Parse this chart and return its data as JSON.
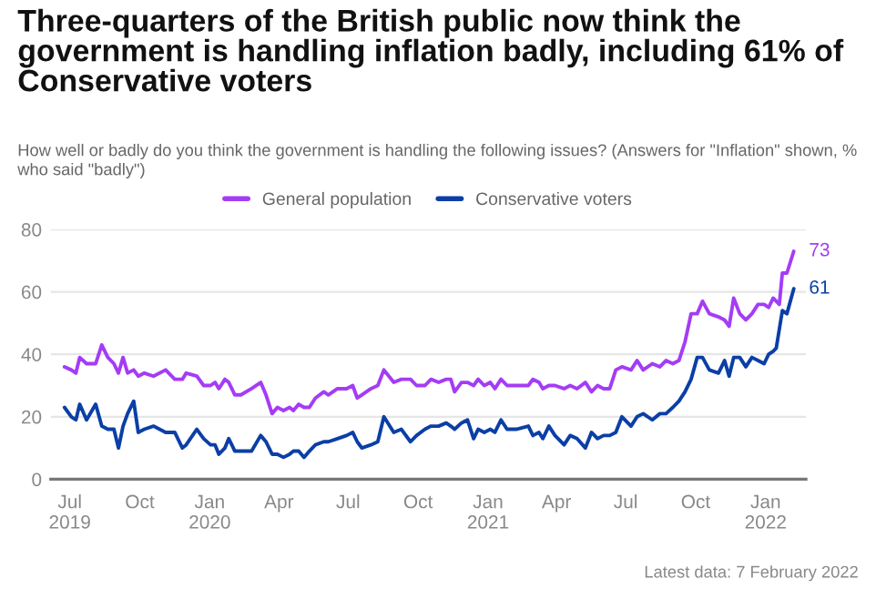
{
  "chart_data": {
    "type": "line",
    "title": "Three-quarters of the British public now think the government is handling inflation badly, including 61% of Conservative voters",
    "subtitle": "How well or badly do you think the government is handling the following issues? (Answers for \"Inflation\" shown, % who said \"badly\")",
    "series": [
      {
        "name": "General population",
        "color": "#a43cf5",
        "x": [
          "2019-06-24",
          "2019-07-03",
          "2019-07-09",
          "2019-07-14",
          "2019-07-23",
          "2019-08-04",
          "2019-08-12",
          "2019-08-20",
          "2019-08-28",
          "2019-09-03",
          "2019-09-09",
          "2019-09-15",
          "2019-09-23",
          "2019-09-29",
          "2019-10-07",
          "2019-10-19",
          "2019-11-04",
          "2019-11-16",
          "2019-11-26",
          "2019-12-01",
          "2019-12-15",
          "2019-12-24",
          "2020-01-02",
          "2020-01-08",
          "2020-01-13",
          "2020-01-21",
          "2020-01-26",
          "2020-02-03",
          "2020-02-11",
          "2020-02-25",
          "2020-03-08",
          "2020-03-15",
          "2020-03-23",
          "2020-03-30",
          "2020-04-07",
          "2020-04-15",
          "2020-04-20",
          "2020-04-27",
          "2020-05-04",
          "2020-05-11",
          "2020-05-19",
          "2020-05-30",
          "2020-06-05",
          "2020-06-17",
          "2020-06-29",
          "2020-07-07",
          "2020-07-13",
          "2020-07-19",
          "2020-07-31",
          "2020-08-09",
          "2020-08-17",
          "2020-08-30",
          "2020-09-09",
          "2020-09-21",
          "2020-09-29",
          "2020-10-10",
          "2020-10-18",
          "2020-10-28",
          "2020-11-07",
          "2020-11-13",
          "2020-11-18",
          "2020-11-27",
          "2020-12-05",
          "2020-12-13",
          "2020-12-19",
          "2020-12-27",
          "2021-01-04",
          "2021-01-10",
          "2021-01-18",
          "2021-01-26",
          "2021-02-07",
          "2021-02-23",
          "2021-03-01",
          "2021-03-09",
          "2021-03-14",
          "2021-03-22",
          "2021-03-30",
          "2021-04-11",
          "2021-04-19",
          "2021-04-28",
          "2021-05-09",
          "2021-05-17",
          "2021-05-25",
          "2021-06-02",
          "2021-06-10",
          "2021-06-18",
          "2021-06-26",
          "2021-07-08",
          "2021-07-16",
          "2021-07-24",
          "2021-08-05",
          "2021-08-15",
          "2021-08-23",
          "2021-09-01",
          "2021-09-09",
          "2021-09-17",
          "2021-09-25",
          "2021-10-03",
          "2021-10-10",
          "2021-10-19",
          "2021-10-31",
          "2021-11-08",
          "2021-11-14",
          "2021-11-20",
          "2021-11-28",
          "2021-12-06",
          "2021-12-14",
          "2021-12-22",
          "2021-12-30",
          "2022-01-05",
          "2022-01-11",
          "2022-01-15",
          "2022-01-19",
          "2022-01-23",
          "2022-01-29",
          "2022-02-07"
        ],
        "values": [
          36,
          35,
          34,
          39,
          37,
          37,
          43,
          39,
          37,
          34,
          39,
          34,
          35,
          33,
          34,
          33,
          35,
          32,
          32,
          34,
          33,
          30,
          30,
          31,
          29,
          32,
          31,
          27,
          27,
          29,
          31,
          27,
          21,
          23,
          22,
          23,
          22,
          24,
          23,
          23,
          26,
          28,
          27,
          29,
          29,
          30,
          26,
          27,
          29,
          30,
          35,
          31,
          32,
          32,
          30,
          30,
          32,
          31,
          32,
          32,
          28,
          31,
          31,
          30,
          32,
          30,
          31,
          29,
          32,
          30,
          30,
          30,
          32,
          31,
          29,
          30,
          30,
          29,
          30,
          29,
          31,
          28,
          30,
          29,
          29,
          35,
          36,
          35,
          38,
          35,
          37,
          36,
          38,
          37,
          38,
          44,
          53,
          53,
          57,
          53,
          52,
          51,
          49,
          58,
          53,
          51,
          53,
          56,
          56,
          55,
          58,
          57,
          56,
          66,
          66,
          73
        ]
      },
      {
        "name": "Conservative voters",
        "color": "#0b3fa6",
        "x": [
          "2019-06-24",
          "2019-07-03",
          "2019-07-09",
          "2019-07-14",
          "2019-07-23",
          "2019-08-04",
          "2019-08-12",
          "2019-08-20",
          "2019-08-28",
          "2019-09-03",
          "2019-09-09",
          "2019-09-15",
          "2019-09-23",
          "2019-09-29",
          "2019-10-07",
          "2019-10-19",
          "2019-11-04",
          "2019-11-16",
          "2019-11-26",
          "2019-12-01",
          "2019-12-15",
          "2019-12-24",
          "2020-01-02",
          "2020-01-08",
          "2020-01-13",
          "2020-01-21",
          "2020-01-26",
          "2020-02-03",
          "2020-02-11",
          "2020-02-25",
          "2020-03-08",
          "2020-03-15",
          "2020-03-23",
          "2020-03-30",
          "2020-04-07",
          "2020-04-15",
          "2020-04-20",
          "2020-04-27",
          "2020-05-04",
          "2020-05-11",
          "2020-05-19",
          "2020-05-30",
          "2020-06-05",
          "2020-06-17",
          "2020-06-29",
          "2020-07-07",
          "2020-07-13",
          "2020-07-19",
          "2020-07-31",
          "2020-08-09",
          "2020-08-17",
          "2020-08-30",
          "2020-09-09",
          "2020-09-21",
          "2020-09-29",
          "2020-10-10",
          "2020-10-18",
          "2020-10-28",
          "2020-11-07",
          "2020-11-13",
          "2020-11-18",
          "2020-11-27",
          "2020-12-05",
          "2020-12-13",
          "2020-12-19",
          "2020-12-27",
          "2021-01-04",
          "2021-01-10",
          "2021-01-18",
          "2021-01-26",
          "2021-02-07",
          "2021-02-23",
          "2021-03-01",
          "2021-03-09",
          "2021-03-14",
          "2021-03-22",
          "2021-03-30",
          "2021-04-11",
          "2021-04-19",
          "2021-04-28",
          "2021-05-09",
          "2021-05-17",
          "2021-05-25",
          "2021-06-02",
          "2021-06-10",
          "2021-06-18",
          "2021-06-26",
          "2021-07-08",
          "2021-07-16",
          "2021-07-24",
          "2021-08-05",
          "2021-08-15",
          "2021-08-23",
          "2021-09-01",
          "2021-09-09",
          "2021-09-17",
          "2021-09-25",
          "2021-10-03",
          "2021-10-10",
          "2021-10-19",
          "2021-10-31",
          "2021-11-08",
          "2021-11-14",
          "2021-11-20",
          "2021-11-28",
          "2021-12-06",
          "2021-12-14",
          "2021-12-22",
          "2021-12-30",
          "2022-01-05",
          "2022-01-11",
          "2022-01-15",
          "2022-01-19",
          "2022-01-23",
          "2022-01-29",
          "2022-02-07"
        ],
        "values": [
          23,
          20,
          19,
          24,
          19,
          24,
          17,
          16,
          16,
          10,
          17,
          21,
          25,
          15,
          16,
          17,
          15,
          15,
          10,
          11,
          16,
          13,
          11,
          11,
          8,
          10,
          13,
          9,
          9,
          9,
          14,
          12,
          8,
          8,
          7,
          8,
          9,
          9,
          7,
          9,
          11,
          12,
          12,
          13,
          14,
          15,
          12,
          10,
          11,
          12,
          20,
          15,
          16,
          12,
          14,
          16,
          17,
          17,
          18,
          17,
          16,
          18,
          19,
          13,
          16,
          15,
          16,
          15,
          19,
          16,
          16,
          17,
          14,
          15,
          13,
          17,
          14,
          11,
          14,
          13,
          10,
          15,
          13,
          14,
          14,
          15,
          20,
          17,
          20,
          21,
          19,
          21,
          21,
          23,
          25,
          28,
          32,
          39,
          39,
          35,
          34,
          38,
          33,
          39,
          39,
          36,
          39,
          38,
          37,
          40,
          41,
          42,
          48,
          54,
          53,
          61
        ]
      }
    ],
    "xlim": [
      "2019-06-06",
      "2022-02-23"
    ],
    "xticks": [
      {
        "value": "2019-07-01",
        "label": "Jul\n2019"
      },
      {
        "value": "2019-10-01",
        "label": "Oct"
      },
      {
        "value": "2020-01-01",
        "label": "Jan\n2020"
      },
      {
        "value": "2020-04-01",
        "label": "Apr"
      },
      {
        "value": "2020-07-01",
        "label": "Jul"
      },
      {
        "value": "2020-10-01",
        "label": "Oct"
      },
      {
        "value": "2021-01-01",
        "label": "Jan\n2021"
      },
      {
        "value": "2021-04-01",
        "label": "Apr"
      },
      {
        "value": "2021-07-01",
        "label": "Jul"
      },
      {
        "value": "2021-10-01",
        "label": "Oct"
      },
      {
        "value": "2022-01-01",
        "label": "Jan\n2022"
      }
    ],
    "ylim": [
      0,
      80
    ],
    "yticks": [
      0,
      20,
      40,
      60,
      80
    ],
    "grid": "y",
    "legend": "top",
    "annotations": [
      {
        "text": "73",
        "x": "2022-02-07",
        "y": 73
      },
      {
        "text": "61",
        "x": "2022-02-07",
        "y": 61
      },
      "Latest data: 7 February 2022"
    ]
  }
}
